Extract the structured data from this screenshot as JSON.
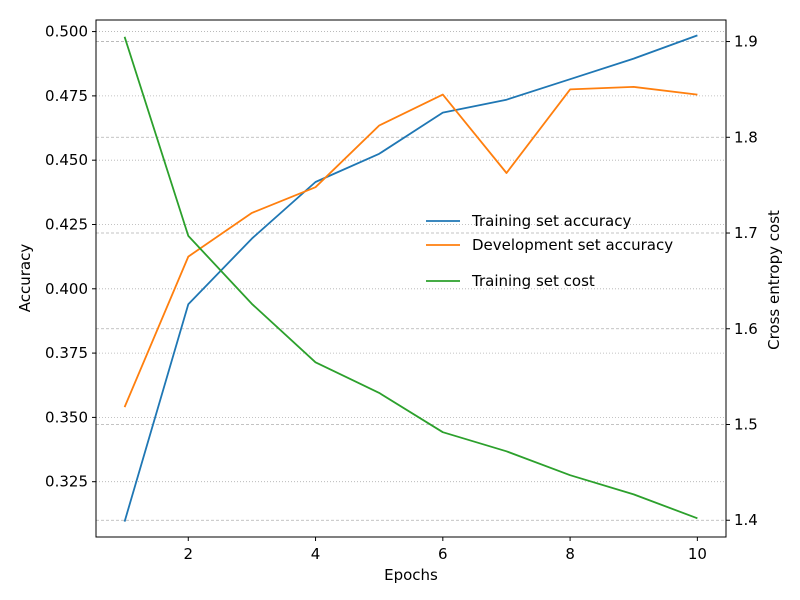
{
  "chart_data": {
    "type": "line",
    "xlabel": "Epochs",
    "ylabel_left": "Accuracy",
    "ylabel_right": "Cross entropy cost",
    "x": [
      1,
      2,
      3,
      4,
      5,
      6,
      7,
      8,
      9,
      10
    ],
    "x_ticks": [
      2,
      4,
      6,
      8,
      10
    ],
    "xlim": [
      0.55,
      10.45
    ],
    "ylim_left": [
      0.3035,
      0.5045
    ],
    "ylim_right": [
      1.3825,
      1.9225
    ],
    "left_ticks": [
      0.325,
      0.35,
      0.375,
      0.4,
      0.425,
      0.45,
      0.475,
      0.5
    ],
    "left_tick_labels": [
      "0.325",
      "0.350",
      "0.375",
      "0.400",
      "0.425",
      "0.450",
      "0.475",
      "0.500"
    ],
    "right_ticks": [
      1.4,
      1.5,
      1.6,
      1.7,
      1.8,
      1.9
    ],
    "right_tick_labels": [
      "1.4",
      "1.5",
      "1.6",
      "1.7",
      "1.8",
      "1.9"
    ],
    "grid": {
      "left_axis": "dotted",
      "right_axis": "dashed"
    },
    "legend_position": "center-right",
    "series": [
      {
        "name": "Training set accuracy",
        "axis": "left",
        "color": "#1f77b4",
        "values": [
          0.3095,
          0.394,
          0.4195,
          0.4415,
          0.4525,
          0.4685,
          0.4735,
          0.4815,
          0.4895,
          0.4985
        ]
      },
      {
        "name": "Development set accuracy",
        "axis": "left",
        "color": "#ff7f0e",
        "values": [
          0.354,
          0.4125,
          0.4295,
          0.4395,
          0.4635,
          0.4755,
          0.445,
          0.4775,
          0.4785,
          0.4755
        ]
      },
      {
        "name": "Training set cost",
        "axis": "right",
        "color": "#2ca02c",
        "values": [
          1.905,
          1.697,
          1.626,
          1.565,
          1.533,
          1.492,
          1.472,
          1.447,
          1.427,
          1.402
        ]
      }
    ]
  }
}
